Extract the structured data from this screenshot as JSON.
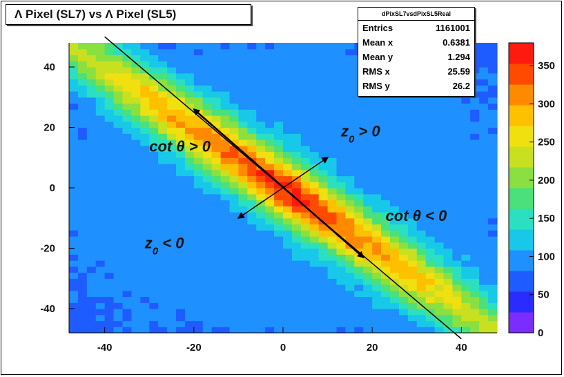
{
  "chart_data": {
    "type": "heatmap",
    "title": "Λ Pixel (SL7) vs Λ Pixel (SL5)",
    "xlim": [
      -48,
      48
    ],
    "ylim": [
      -48,
      48
    ],
    "x_ticks": [
      "-40",
      "-20",
      "0",
      "20",
      "40"
    ],
    "x_tick_values": [
      -40,
      -20,
      0,
      20,
      40
    ],
    "y_ticks": [
      "40",
      "20",
      "0",
      "-20",
      "-40"
    ],
    "y_tick_values": [
      40,
      20,
      0,
      -20,
      -40
    ],
    "z_range": [
      0,
      380
    ],
    "z_ticks": [
      "350",
      "300",
      "250",
      "200",
      "150",
      "100",
      "50",
      "0"
    ],
    "z_tick_values": [
      350,
      300,
      250,
      200,
      150,
      100,
      50,
      0
    ],
    "stats_box": {
      "name": "dPixSL7vsdPixSL5Real",
      "rows": [
        {
          "label": "Entrics",
          "value": "1161001"
        },
        {
          "label": "Mean x",
          "value": "0.6381"
        },
        {
          "label": "Mean y",
          "value": "1.294"
        },
        {
          "label": "RMS x",
          "value": "25.59"
        },
        {
          "label": "RMS y",
          "value": "26.2"
        }
      ]
    },
    "annotations": [
      {
        "text": "cot θ > 0",
        "x": -30,
        "y": 12
      },
      {
        "text": "z",
        "sub": "0",
        "rest": " > 0",
        "x": 13,
        "y": 17
      },
      {
        "text": "cot θ < 0",
        "x": 23,
        "y": -11
      },
      {
        "text": "z",
        "sub": "0",
        "rest": " < 0",
        "x": -31,
        "y": -20
      }
    ],
    "diagonal_line": {
      "x": [
        -40,
        40
      ],
      "y": [
        50,
        -50
      ]
    },
    "arrow_along": {
      "x": [
        -20,
        18
      ],
      "y": [
        26,
        -23
      ]
    },
    "arrow_across": {
      "x": [
        -10,
        10
      ],
      "y": [
        -10,
        10
      ]
    },
    "colors": {
      "palette": [
        "#7b2cff",
        "#2a2cff",
        "#1f5cff",
        "#1e90ff",
        "#18c8e8",
        "#2ae0c0",
        "#4ae07a",
        "#8ae040",
        "#c8e020",
        "#f0e010",
        "#ffc000",
        "#ff8a00",
        "#ff4a00",
        "#ff1a10"
      ]
    }
  }
}
